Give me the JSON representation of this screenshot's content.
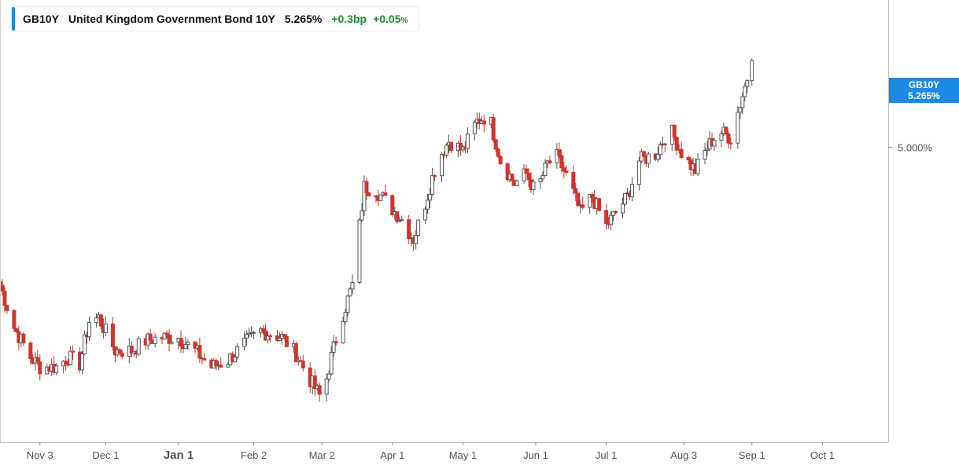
{
  "legend": {
    "symbol": "GB10Y",
    "name": "United Kingdom Government Bond 10Y",
    "price": "5.265%",
    "change": "+0.3bp",
    "change_pct": "+0.05",
    "change_pct_unit": "%"
  },
  "last_tag": {
    "symbol": "GB10Y",
    "value": "5.265%"
  },
  "colors": {
    "up": "#ffffff",
    "up_border": "#555555",
    "down": "#d0342c",
    "accent": "#1e88e5",
    "positive_text": "#1e8a2e"
  },
  "chart_data": {
    "type": "candlestick",
    "title": "",
    "y_tick_labels": [
      {
        "value": 5.0,
        "label": "5.000%"
      }
    ],
    "last_value": 5.265,
    "x_tick_labels": [
      {
        "label": "Nov 3",
        "date": "2023-11-03"
      },
      {
        "label": "Dec 1",
        "date": "2023-12-01"
      },
      {
        "label": "Jan 1",
        "date": "2024-01-01"
      },
      {
        "label": "Feb 2",
        "date": "2024-02-02"
      },
      {
        "label": "Mar 2",
        "date": "2024-03-02"
      },
      {
        "label": "Apr 1",
        "date": "2024-04-01"
      },
      {
        "label": "May 1",
        "date": "2024-05-01"
      },
      {
        "label": "Jun 1",
        "date": "2024-06-01"
      },
      {
        "label": "Jul 1",
        "date": "2024-07-01"
      },
      {
        "label": "Aug 3",
        "date": "2024-08-03"
      },
      {
        "label": "Sep 1",
        "date": "2024-09-01"
      },
      {
        "label": "Oct 1",
        "date": "2024-10-01"
      }
    ],
    "x_range": [
      "2023-10-17",
      "2024-10-29"
    ],
    "y_range": [
      4.1,
      5.45
    ],
    "grid": false,
    "series": [
      {
        "points": [
          [
            "2023-10-17",
            4.58
          ],
          [
            "2023-10-23",
            4.45
          ],
          [
            "2023-10-30",
            4.36
          ],
          [
            "2023-11-03",
            4.33
          ],
          [
            "2023-11-10",
            4.33
          ],
          [
            "2023-11-15",
            4.36
          ],
          [
            "2023-11-20",
            4.34
          ],
          [
            "2023-11-24",
            4.47
          ],
          [
            "2023-11-28",
            4.48
          ],
          [
            "2023-12-05",
            4.38
          ],
          [
            "2023-12-12",
            4.38
          ],
          [
            "2023-12-18",
            4.41
          ],
          [
            "2023-12-25",
            4.42
          ],
          [
            "2024-01-01",
            4.42
          ],
          [
            "2024-01-08",
            4.38
          ],
          [
            "2024-01-15",
            4.33
          ],
          [
            "2024-01-22",
            4.35
          ],
          [
            "2024-01-29",
            4.4
          ],
          [
            "2024-02-05",
            4.44
          ],
          [
            "2024-02-10",
            4.43
          ],
          [
            "2024-02-14",
            4.42
          ],
          [
            "2024-02-20",
            4.37
          ],
          [
            "2024-02-26",
            4.29
          ],
          [
            "2024-03-02",
            4.23
          ],
          [
            "2024-03-06",
            4.36
          ],
          [
            "2024-03-10",
            4.47
          ],
          [
            "2024-03-15",
            4.58
          ],
          [
            "2024-03-20",
            4.88
          ],
          [
            "2024-03-25",
            4.87
          ],
          [
            "2024-03-31",
            4.82
          ],
          [
            "2024-04-05",
            4.78
          ],
          [
            "2024-04-10",
            4.72
          ],
          [
            "2024-04-15",
            4.83
          ],
          [
            "2024-04-20",
            4.96
          ],
          [
            "2024-04-25",
            5.02
          ],
          [
            "2024-05-01",
            4.99
          ],
          [
            "2024-05-07",
            5.08
          ],
          [
            "2024-05-12",
            5.1
          ],
          [
            "2024-05-17",
            4.96
          ],
          [
            "2024-05-23",
            4.89
          ],
          [
            "2024-05-28",
            4.92
          ],
          [
            "2024-06-01",
            4.86
          ],
          [
            "2024-06-06",
            4.95
          ],
          [
            "2024-06-10",
            4.97
          ],
          [
            "2024-06-15",
            4.9
          ],
          [
            "2024-06-20",
            4.8
          ],
          [
            "2024-06-25",
            4.85
          ],
          [
            "2024-07-01",
            4.76
          ],
          [
            "2024-07-05",
            4.8
          ],
          [
            "2024-07-10",
            4.85
          ],
          [
            "2024-07-15",
            4.96
          ],
          [
            "2024-07-22",
            4.98
          ],
          [
            "2024-07-28",
            5.06
          ],
          [
            "2024-08-03",
            4.97
          ],
          [
            "2024-08-08",
            4.93
          ],
          [
            "2024-08-13",
            5.0
          ],
          [
            "2024-08-18",
            5.05
          ],
          [
            "2024-08-23",
            5.03
          ],
          [
            "2024-08-28",
            5.16
          ],
          [
            "2024-09-01",
            5.265
          ]
        ]
      }
    ]
  }
}
